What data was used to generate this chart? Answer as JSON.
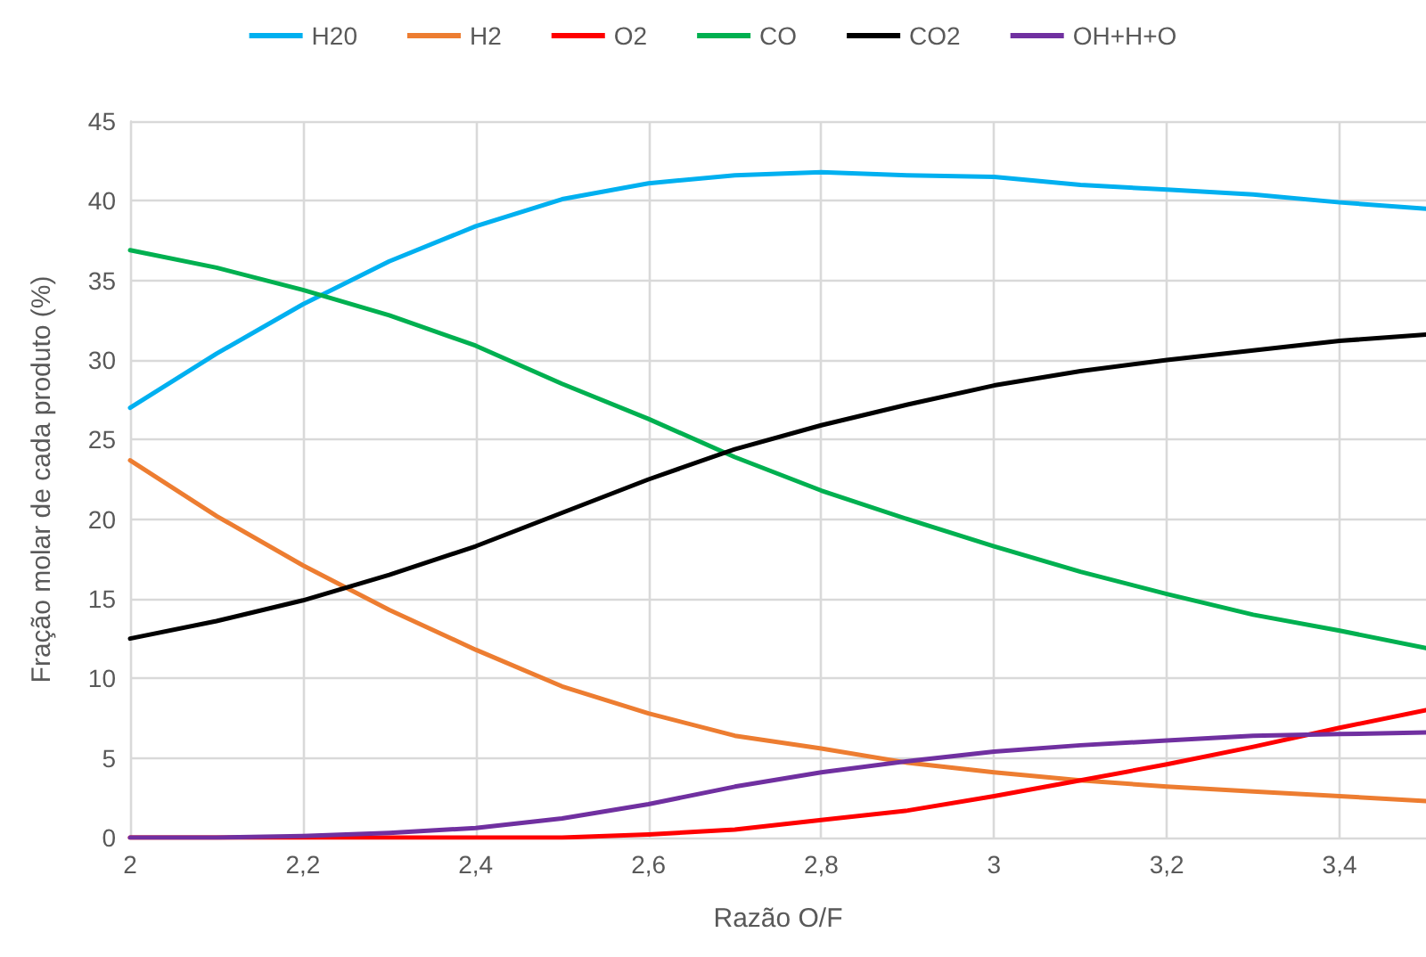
{
  "chart_data": {
    "type": "line",
    "xlabel": "Razão O/F",
    "ylabel": "Fração molar de cada produto (%)",
    "x": [
      2,
      2.1,
      2.2,
      2.3,
      2.4,
      2.5,
      2.6,
      2.7,
      2.8,
      2.9,
      3,
      3.1,
      3.2,
      3.3,
      3.4,
      3.5
    ],
    "series": [
      {
        "name": "H20",
        "color": "#00b0f0",
        "values": [
          27,
          30.4,
          33.5,
          36.2,
          38.4,
          40.1,
          41.1,
          41.6,
          41.8,
          41.6,
          41.5,
          41.0,
          40.7,
          40.4,
          39.9,
          39.5
        ]
      },
      {
        "name": "H2",
        "color": "#ed7d31",
        "values": [
          23.7,
          20.2,
          17.1,
          14.3,
          11.8,
          9.5,
          7.8,
          6.4,
          5.6,
          4.7,
          4.1,
          3.6,
          3.2,
          2.9,
          2.6,
          2.3
        ]
      },
      {
        "name": "O2",
        "color": "#ff0000",
        "values": [
          0,
          0,
          0,
          0,
          0,
          0,
          0.2,
          0.5,
          1.1,
          1.7,
          2.6,
          3.6,
          4.6,
          5.7,
          6.9,
          8.0
        ]
      },
      {
        "name": "CO",
        "color": "#00b050",
        "values": [
          36.9,
          35.8,
          34.4,
          32.8,
          30.9,
          28.5,
          26.3,
          23.9,
          21.8,
          20.0,
          18.3,
          16.7,
          15.3,
          14.0,
          13.0,
          11.9
        ]
      },
      {
        "name": "CO2",
        "color": "#000000",
        "values": [
          12.5,
          13.6,
          14.9,
          16.5,
          18.3,
          20.4,
          22.5,
          24.4,
          25.9,
          27.2,
          28.4,
          29.3,
          30.0,
          30.6,
          31.2,
          31.6
        ]
      },
      {
        "name": "OH+H+O",
        "color": "#7030a0",
        "values": [
          0,
          0,
          0.1,
          0.3,
          0.6,
          1.2,
          2.1,
          3.2,
          4.1,
          4.8,
          5.4,
          5.8,
          6.1,
          6.4,
          6.5,
          6.6
        ]
      }
    ],
    "xlim": [
      2,
      3.5
    ],
    "xticks": [
      2,
      {
        "value": 2.2,
        "label": "2,2"
      },
      {
        "value": 2.4,
        "label": "2,4"
      },
      {
        "value": 2.6,
        "label": "2,6"
      },
      {
        "value": 2.8,
        "label": "2,8"
      },
      3,
      {
        "value": 3.2,
        "label": "3,2"
      },
      {
        "value": 3.4,
        "label": "3,4"
      }
    ],
    "ylim": [
      0,
      45
    ],
    "yticks": [
      0,
      5,
      10,
      15,
      20,
      25,
      30,
      35,
      40,
      45
    ],
    "grid": true,
    "legend": "top",
    "marker": "none",
    "line_style": "solid"
  }
}
